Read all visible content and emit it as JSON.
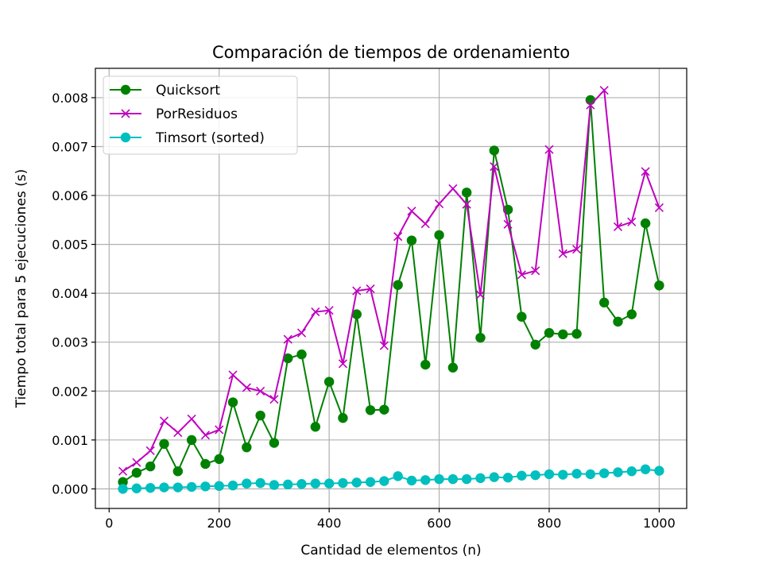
{
  "chart_data": {
    "type": "line",
    "title": "Comparación de tiempos de ordenamiento",
    "xlabel": "Cantidad de elementos (n)",
    "ylabel": "Tiempo total para 5 ejecuciones (s)",
    "xlim": [
      -25,
      1050
    ],
    "ylim": [
      -0.0004,
      0.0086
    ],
    "xticks": [
      0,
      200,
      400,
      600,
      800,
      1000
    ],
    "yticks": [
      0.0,
      0.001,
      0.002,
      0.003,
      0.004,
      0.005,
      0.006,
      0.007,
      0.008
    ],
    "xtick_labels": [
      "0",
      "200",
      "400",
      "600",
      "800",
      "1000"
    ],
    "ytick_labels": [
      "0.000",
      "0.001",
      "0.002",
      "0.003",
      "0.004",
      "0.005",
      "0.006",
      "0.007",
      "0.008"
    ],
    "grid": true,
    "legend_position": "top-left",
    "x": [
      25,
      50,
      75,
      100,
      125,
      150,
      175,
      200,
      225,
      250,
      275,
      300,
      325,
      350,
      375,
      400,
      425,
      450,
      475,
      500,
      525,
      550,
      575,
      600,
      625,
      650,
      675,
      700,
      725,
      750,
      775,
      800,
      825,
      850,
      875,
      900,
      925,
      950,
      975,
      1000
    ],
    "series": [
      {
        "name": "Quicksort",
        "color": "#008000",
        "marker": "circle",
        "values": [
          0.00014,
          0.00033,
          0.00046,
          0.00092,
          0.00036,
          0.001,
          0.00051,
          0.00061,
          0.00177,
          0.00085,
          0.0015,
          0.00094,
          0.00267,
          0.00275,
          0.00127,
          0.00219,
          0.00145,
          0.00357,
          0.00161,
          0.00162,
          0.00417,
          0.00508,
          0.00254,
          0.00519,
          0.00248,
          0.00606,
          0.00309,
          0.00692,
          0.00571,
          0.00352,
          0.00295,
          0.00319,
          0.00316,
          0.00317,
          0.00795,
          0.00381,
          0.00342,
          0.00357,
          0.00543,
          0.00416
        ]
      },
      {
        "name": "PorResiduos",
        "color": "#bf00bf",
        "marker": "x",
        "values": [
          0.00036,
          0.00054,
          0.00078,
          0.00139,
          0.00115,
          0.00143,
          0.0011,
          0.00121,
          0.00233,
          0.00207,
          0.002,
          0.00183,
          0.00306,
          0.00319,
          0.00362,
          0.00365,
          0.00256,
          0.00405,
          0.00409,
          0.00293,
          0.00516,
          0.00568,
          0.00542,
          0.00583,
          0.00614,
          0.00582,
          0.00397,
          0.00659,
          0.00541,
          0.00438,
          0.00446,
          0.00694,
          0.00481,
          0.0049,
          0.00785,
          0.00815,
          0.00536,
          0.00546,
          0.00649,
          0.00575
        ]
      },
      {
        "name": "Timsort (sorted)",
        "color": "#00bfbf",
        "marker": "circle",
        "values": [
          0.0,
          1e-05,
          2e-05,
          3e-05,
          3e-05,
          4e-05,
          5e-05,
          6e-05,
          7e-05,
          0.00011,
          0.00012,
          8e-05,
          9e-05,
          0.0001,
          0.00011,
          0.00011,
          0.00012,
          0.00013,
          0.00014,
          0.00016,
          0.00026,
          0.00017,
          0.00018,
          0.0002,
          0.0002,
          0.0002,
          0.00022,
          0.00024,
          0.00023,
          0.00027,
          0.00028,
          0.0003,
          0.00029,
          0.00031,
          0.0003,
          0.00032,
          0.00034,
          0.00036,
          0.0004,
          0.00037
        ]
      }
    ]
  }
}
